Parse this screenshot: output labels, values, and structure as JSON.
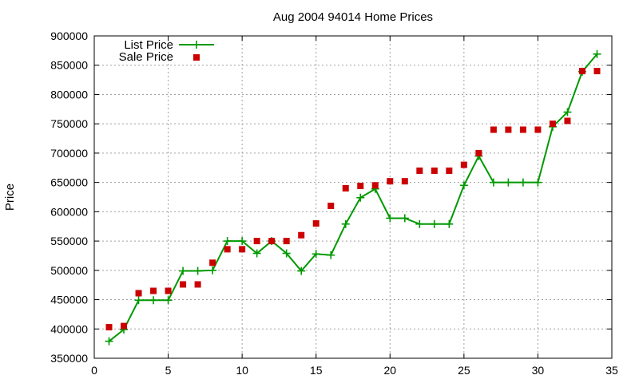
{
  "chart_data": {
    "type": "line",
    "title": "Aug 2004 94014 Home Prices",
    "xlabel": "",
    "ylabel": "Price",
    "xlim": [
      0,
      35
    ],
    "ylim": [
      350000,
      900000
    ],
    "x_ticks": [
      0,
      5,
      10,
      15,
      20,
      25,
      30,
      35
    ],
    "y_ticks": [
      350000,
      400000,
      450000,
      500000,
      550000,
      600000,
      650000,
      700000,
      750000,
      800000,
      850000,
      900000
    ],
    "x_tick_labels": [
      "0",
      "5",
      "10",
      "15",
      "20",
      "25",
      "30",
      "35"
    ],
    "y_tick_labels": [
      "350000",
      "400000",
      "450000",
      "500000",
      "550000",
      "600000",
      "650000",
      "700000",
      "750000",
      "800000",
      "850000",
      "900000"
    ],
    "grid": true,
    "legend_position": "top-left",
    "series": [
      {
        "name": "List Price",
        "style": "line-with-plus-markers",
        "color": "#009900",
        "x": [
          1,
          2,
          3,
          4,
          5,
          6,
          7,
          8,
          9,
          10,
          11,
          12,
          13,
          14,
          15,
          16,
          17,
          18,
          19,
          20,
          21,
          22,
          23,
          24,
          25,
          26,
          27,
          28,
          29,
          30,
          31,
          32,
          33,
          34
        ],
        "y": [
          379000,
          399000,
          449000,
          449000,
          449000,
          499000,
          499000,
          500000,
          550000,
          550000,
          529000,
          550000,
          529000,
          499000,
          528000,
          526000,
          579000,
          624000,
          639000,
          589000,
          589000,
          579000,
          579000,
          579000,
          645000,
          695000,
          650000,
          650000,
          650000,
          650000,
          745000,
          770000,
          839000,
          869000
        ]
      },
      {
        "name": "Sale Price",
        "style": "square-markers",
        "color": "#cc0000",
        "x": [
          1,
          2,
          3,
          4,
          5,
          6,
          7,
          8,
          9,
          10,
          11,
          12,
          13,
          14,
          15,
          16,
          17,
          18,
          19,
          20,
          21,
          22,
          23,
          24,
          25,
          26,
          27,
          28,
          29,
          30,
          31,
          32,
          33,
          34
        ],
        "y": [
          403000,
          405000,
          461000,
          465000,
          465000,
          476000,
          476000,
          513000,
          536000,
          536000,
          550000,
          550000,
          550000,
          560000,
          580000,
          610000,
          640000,
          644000,
          645000,
          652000,
          652000,
          670000,
          670000,
          670000,
          680000,
          700000,
          740000,
          740000,
          740000,
          740000,
          750000,
          755000,
          840000,
          840000
        ]
      }
    ]
  }
}
